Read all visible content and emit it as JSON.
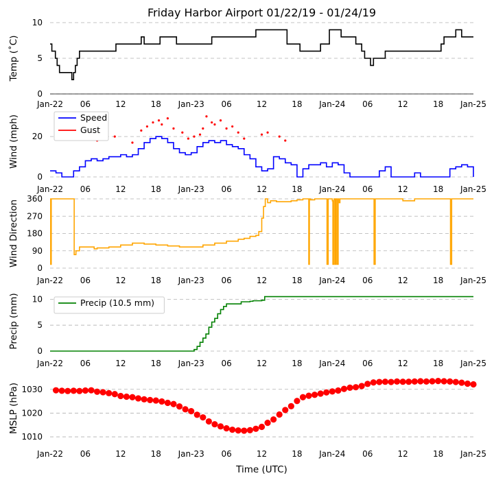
{
  "figure": {
    "title": "Friday Harbor Airport 01/22/19 - 01/24/19",
    "xlabel": "Time (UTC)",
    "xtick_labels": [
      "Jan-22",
      "06",
      "12",
      "18",
      "Jan-23",
      "06",
      "12",
      "18",
      "Jan-24",
      "06",
      "12",
      "18",
      "Jan-25"
    ]
  },
  "chart_data": [
    {
      "type": "line",
      "id": "temp",
      "ylabel": "Temp ($^\\circ$C)",
      "ylabel_display": "Temp (˚C)",
      "xlim_hours": [
        0,
        72
      ],
      "ylim": [
        0,
        10
      ],
      "yticks": [
        0,
        5,
        10
      ],
      "grid": true,
      "series": [
        {
          "color": "#000000",
          "x_hours": [
            0,
            0.3,
            0.6,
            0.9,
            1.2,
            1.6,
            2.5,
            3.5,
            3.7,
            4.0,
            4.3,
            4.6,
            5.0,
            6.0,
            8.0,
            10.0,
            11.0,
            11.2,
            13.0,
            15.0,
            15.5,
            16.0,
            18.0,
            18.7,
            21.0,
            21.5,
            24.0,
            26.0,
            27.5,
            29.0,
            30.0,
            32.0,
            34.0,
            35.0,
            36.0,
            36.4,
            37.0,
            38.5,
            40.0,
            40.3,
            42.0,
            42.5,
            44.0,
            46.0,
            47.5,
            48.0,
            48.4,
            48.8,
            49.5,
            50.0,
            52.0,
            53.0,
            53.5,
            54.5,
            55.0,
            57.0,
            60.0,
            63.0,
            64.0,
            65.0,
            66.5,
            67.0,
            69.0,
            70.0,
            72.0
          ],
          "y": [
            7.0,
            6.0,
            6.0,
            5.0,
            4.0,
            3.0,
            3.0,
            3.0,
            2.0,
            3.0,
            4.0,
            5.0,
            6.0,
            6.0,
            6.0,
            6.0,
            6.0,
            7.0,
            7.0,
            7.0,
            8.0,
            7.0,
            7.0,
            8.0,
            8.0,
            7.0,
            7.0,
            7.0,
            8.0,
            8.0,
            8.0,
            8.0,
            8.0,
            9.0,
            9.0,
            9.0,
            9.0,
            9.0,
            9.0,
            7.0,
            7.0,
            6.0,
            6.0,
            7.0,
            9.0,
            9.0,
            9.0,
            9.0,
            8.0,
            8.0,
            7.0,
            6.0,
            5.0,
            4.0,
            5.0,
            6.0,
            6.0,
            6.0,
            6.0,
            6.0,
            7.0,
            8.0,
            9.0,
            8.0,
            8.0
          ]
        }
      ]
    },
    {
      "type": "line",
      "id": "wind",
      "ylabel": "Wind (mph)",
      "xlim_hours": [
        0,
        72
      ],
      "ylim": [
        0,
        35
      ],
      "yticks": [
        0,
        20
      ],
      "grid": true,
      "legend": "top-left",
      "series": [
        {
          "name": "Speed",
          "color": "#0000ff",
          "x_hours": [
            0,
            1,
            2,
            3,
            4,
            5,
            6,
            7,
            8,
            9,
            10,
            11,
            12,
            13,
            14,
            15,
            16,
            17,
            18,
            19,
            20,
            21,
            22,
            23,
            24,
            25,
            26,
            27,
            28,
            29,
            30,
            31,
            32,
            33,
            34,
            35,
            36,
            37,
            38,
            39,
            40,
            41,
            42,
            43,
            44,
            45,
            46,
            47,
            48,
            49,
            50,
            51,
            52,
            53,
            54,
            55,
            56,
            57,
            58,
            59,
            60,
            61,
            62,
            63,
            64,
            65,
            66,
            67,
            68,
            69,
            70,
            71,
            72
          ],
          "y": [
            3,
            2,
            0,
            0,
            3,
            5,
            8,
            9,
            8,
            9,
            10,
            10,
            11,
            10,
            11,
            14,
            17,
            19,
            20,
            19,
            17,
            14,
            12,
            11,
            12,
            15,
            17,
            18,
            17,
            18,
            16,
            15,
            14,
            11,
            9,
            5,
            3,
            4,
            10,
            9,
            7,
            6,
            0,
            4,
            6,
            6,
            7,
            5,
            7,
            6,
            2,
            0,
            0,
            0,
            0,
            0,
            3,
            5,
            0,
            0,
            0,
            0,
            2,
            0,
            0,
            0,
            0,
            0,
            4,
            5,
            6,
            5,
            0
          ]
        },
        {
          "name": "Gust",
          "color": "#ff0000",
          "x_hours": [
            8,
            11,
            14,
            15.5,
            16.5,
            17.5,
            18.5,
            19.0,
            20.0,
            21.0,
            22.5,
            23.5,
            24.5,
            25.5,
            26.0,
            26.6,
            27.5,
            28.0,
            29.0,
            30.0,
            31.0,
            32.0,
            33.0,
            36.0,
            37.0,
            39.0,
            40.0
          ],
          "y": [
            18,
            20,
            17,
            23,
            25,
            27,
            28,
            26,
            29,
            24,
            22,
            19,
            20,
            21,
            24,
            30,
            27,
            26,
            28,
            24,
            25,
            22,
            19,
            21,
            22,
            20,
            18
          ]
        }
      ]
    },
    {
      "type": "line",
      "id": "wind_direction",
      "ylabel": "Wind Direction",
      "xlim_hours": [
        0,
        72
      ],
      "ylim": [
        0,
        360
      ],
      "yticks": [
        0,
        90,
        180,
        270,
        360
      ],
      "grid": true,
      "series": [
        {
          "color": "#ffa500",
          "x_hours": [
            0,
            0.1,
            0.2,
            0.3,
            4.0,
            4.1,
            4.4,
            5.0,
            7.5,
            8.0,
            10.0,
            12.0,
            14.0,
            16.0,
            18.0,
            20.0,
            22.0,
            24.0,
            26.0,
            28.0,
            30.0,
            32.0,
            33.0,
            34.0,
            35.0,
            35.5,
            36.0,
            36.3,
            36.6,
            37.0,
            37.5,
            38.5,
            41.0,
            42.0,
            43.0,
            44.0,
            44.1,
            44.3,
            45.0,
            47.0,
            47.1,
            47.3,
            48.0,
            48.1,
            48.3,
            48.5,
            48.6,
            48.8,
            49.0,
            49.1,
            49.3,
            52.0,
            55.0,
            55.1,
            55.3,
            60.0,
            62.0,
            67.0,
            68.0,
            68.1,
            68.3,
            72.0
          ],
          "y": [
            360,
            20,
            360,
            360,
            360,
            70,
            90,
            110,
            100,
            105,
            110,
            120,
            130,
            125,
            120,
            115,
            110,
            110,
            120,
            130,
            140,
            150,
            155,
            165,
            170,
            190,
            260,
            320,
            360,
            340,
            350,
            345,
            350,
            355,
            360,
            20,
            360,
            355,
            360,
            360,
            20,
            360,
            350,
            20,
            360,
            20,
            360,
            20,
            360,
            340,
            360,
            360,
            360,
            20,
            360,
            350,
            360,
            360,
            360,
            20,
            360,
            360
          ]
        }
      ]
    },
    {
      "type": "line",
      "id": "precip",
      "ylabel": "Precip (mm)",
      "xlim_hours": [
        0,
        72
      ],
      "ylim": [
        0,
        11.5
      ],
      "yticks": [
        0,
        5,
        10
      ],
      "grid": true,
      "legend": "top-left",
      "series": [
        {
          "name": "Precip (10.5 mm)",
          "color": "#008000",
          "x_hours": [
            0,
            24,
            24.5,
            25,
            25.5,
            26,
            26.5,
            27,
            27.5,
            28,
            28.5,
            29,
            29.5,
            30,
            31,
            31.5,
            32.5,
            34,
            34.5,
            36,
            36.5,
            72
          ],
          "y": [
            0,
            0,
            0.3,
            0.9,
            1.7,
            2.5,
            3.3,
            4.6,
            5.6,
            6.3,
            7.2,
            8.0,
            8.6,
            9.1,
            9.1,
            9.1,
            9.5,
            9.6,
            9.7,
            9.8,
            10.5,
            10.5
          ]
        }
      ]
    },
    {
      "type": "scatter",
      "id": "mslp",
      "ylabel": "MSLP (hPa)",
      "xlim_hours": [
        0,
        72
      ],
      "ylim": [
        1008,
        1036
      ],
      "yticks": [
        1010,
        1020,
        1030
      ],
      "grid": true,
      "series": [
        {
          "color": "#ff0000",
          "x_hours": [
            1,
            2,
            3,
            4,
            5,
            6,
            7,
            8,
            9,
            10,
            11,
            12,
            13,
            14,
            15,
            16,
            17,
            18,
            19,
            20,
            21,
            22,
            23,
            24,
            25,
            26,
            27,
            28,
            29,
            30,
            31,
            32,
            33,
            34,
            35,
            36,
            37,
            38,
            39,
            40,
            41,
            42,
            43,
            44,
            45,
            46,
            47,
            48,
            49,
            50,
            51,
            52,
            53,
            54,
            55,
            56,
            57,
            58,
            59,
            60,
            61,
            62,
            63,
            64,
            65,
            66,
            67,
            68,
            69,
            70,
            71,
            72
          ],
          "y": [
            1029.6,
            1029.4,
            1029.3,
            1029.4,
            1029.3,
            1029.5,
            1029.6,
            1029.0,
            1028.8,
            1028.4,
            1028.0,
            1027.2,
            1026.9,
            1026.7,
            1026.2,
            1025.8,
            1025.5,
            1025.3,
            1024.9,
            1024.3,
            1023.8,
            1022.8,
            1021.6,
            1020.8,
            1019.3,
            1018.2,
            1016.5,
            1015.3,
            1014.4,
            1013.6,
            1013.0,
            1012.7,
            1012.6,
            1012.8,
            1013.4,
            1014.2,
            1015.9,
            1017.3,
            1019.4,
            1021.3,
            1022.9,
            1025.1,
            1026.7,
            1027.3,
            1027.7,
            1028.2,
            1028.7,
            1029.1,
            1029.5,
            1030.2,
            1030.7,
            1030.9,
            1031.4,
            1032.3,
            1032.9,
            1033.1,
            1033.2,
            1033.1,
            1033.3,
            1033.2,
            1033.2,
            1033.3,
            1033.4,
            1033.3,
            1033.4,
            1033.5,
            1033.4,
            1033.3,
            1033.1,
            1032.8,
            1032.4,
            1032.1
          ]
        }
      ]
    }
  ]
}
